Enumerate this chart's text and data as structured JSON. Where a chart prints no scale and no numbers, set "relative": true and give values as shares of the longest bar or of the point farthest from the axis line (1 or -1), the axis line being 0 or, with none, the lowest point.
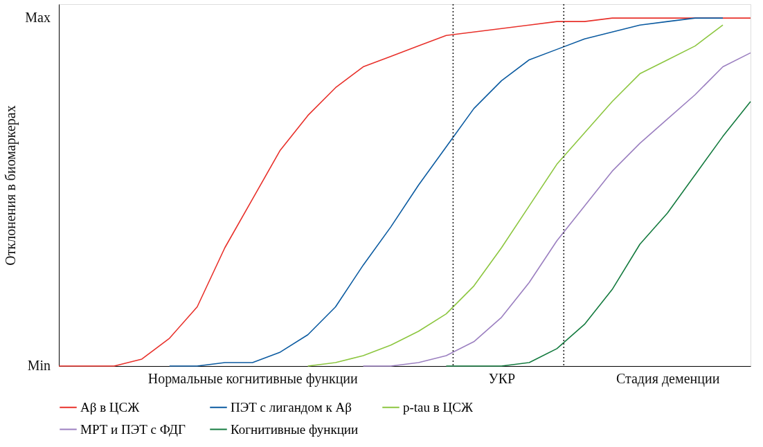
{
  "chart_data": {
    "type": "line",
    "ylabel": "Отклонения в биомаркерах",
    "relative": true,
    "categories": [
      null,
      null,
      null,
      null,
      null,
      null,
      null,
      "Нормальные когнитивные функции",
      null,
      null,
      null,
      null,
      null,
      null,
      null,
      null,
      "УКР",
      null,
      null,
      null,
      null,
      null,
      "Стадия деменции",
      null,
      null,
      null
    ],
    "annotations": [
      "Max",
      "Min"
    ],
    "grid": false,
    "legend": "bottom",
    "marker": "none",
    "line_style": "solid",
    "series": [
      {
        "name": "Aβ в ЦСЖ",
        "color": "#e8302a",
        "values": [
          0,
          0,
          0,
          0.02,
          0.08,
          0.17,
          0.34,
          0.48,
          0.62,
          0.72,
          0.8,
          0.86,
          0.89,
          0.92,
          0.95,
          0.96,
          0.97,
          0.98,
          0.99,
          0.99,
          1,
          1,
          1,
          1,
          1,
          1
        ]
      },
      {
        "name": "ПЭТ с лигандом к Aβ",
        "color": "#0a5aa0",
        "values": [
          null,
          null,
          null,
          null,
          0,
          0,
          0.01,
          0.01,
          0.04,
          0.09,
          0.17,
          0.29,
          0.4,
          0.52,
          0.63,
          0.74,
          0.82,
          0.88,
          0.91,
          0.94,
          0.96,
          0.98,
          0.99,
          1,
          1,
          null
        ]
      },
      {
        "name": "p-tau в ЦСЖ",
        "color": "#8cc63f",
        "values": [
          null,
          null,
          null,
          null,
          null,
          null,
          null,
          null,
          null,
          0,
          0.01,
          0.03,
          0.06,
          0.1,
          0.15,
          0.23,
          0.34,
          0.46,
          0.58,
          0.67,
          0.76,
          0.84,
          0.88,
          0.92,
          0.98,
          null
        ]
      },
      {
        "name": "МРТ и ПЭТ с ФДГ",
        "color": "#9b7fc0",
        "values": [
          null,
          null,
          null,
          null,
          null,
          null,
          null,
          null,
          null,
          null,
          null,
          0,
          0,
          0.01,
          0.03,
          0.07,
          0.14,
          0.24,
          0.36,
          0.46,
          0.56,
          0.64,
          0.71,
          0.78,
          0.86,
          0.9
        ]
      },
      {
        "name": "Когнитивные функции",
        "color": "#137a3e",
        "values": [
          null,
          null,
          null,
          null,
          null,
          null,
          null,
          null,
          null,
          null,
          null,
          null,
          null,
          null,
          0,
          0,
          0,
          0.01,
          0.05,
          0.12,
          0.22,
          0.35,
          0.44,
          0.55,
          0.66,
          0.76
        ]
      }
    ]
  }
}
